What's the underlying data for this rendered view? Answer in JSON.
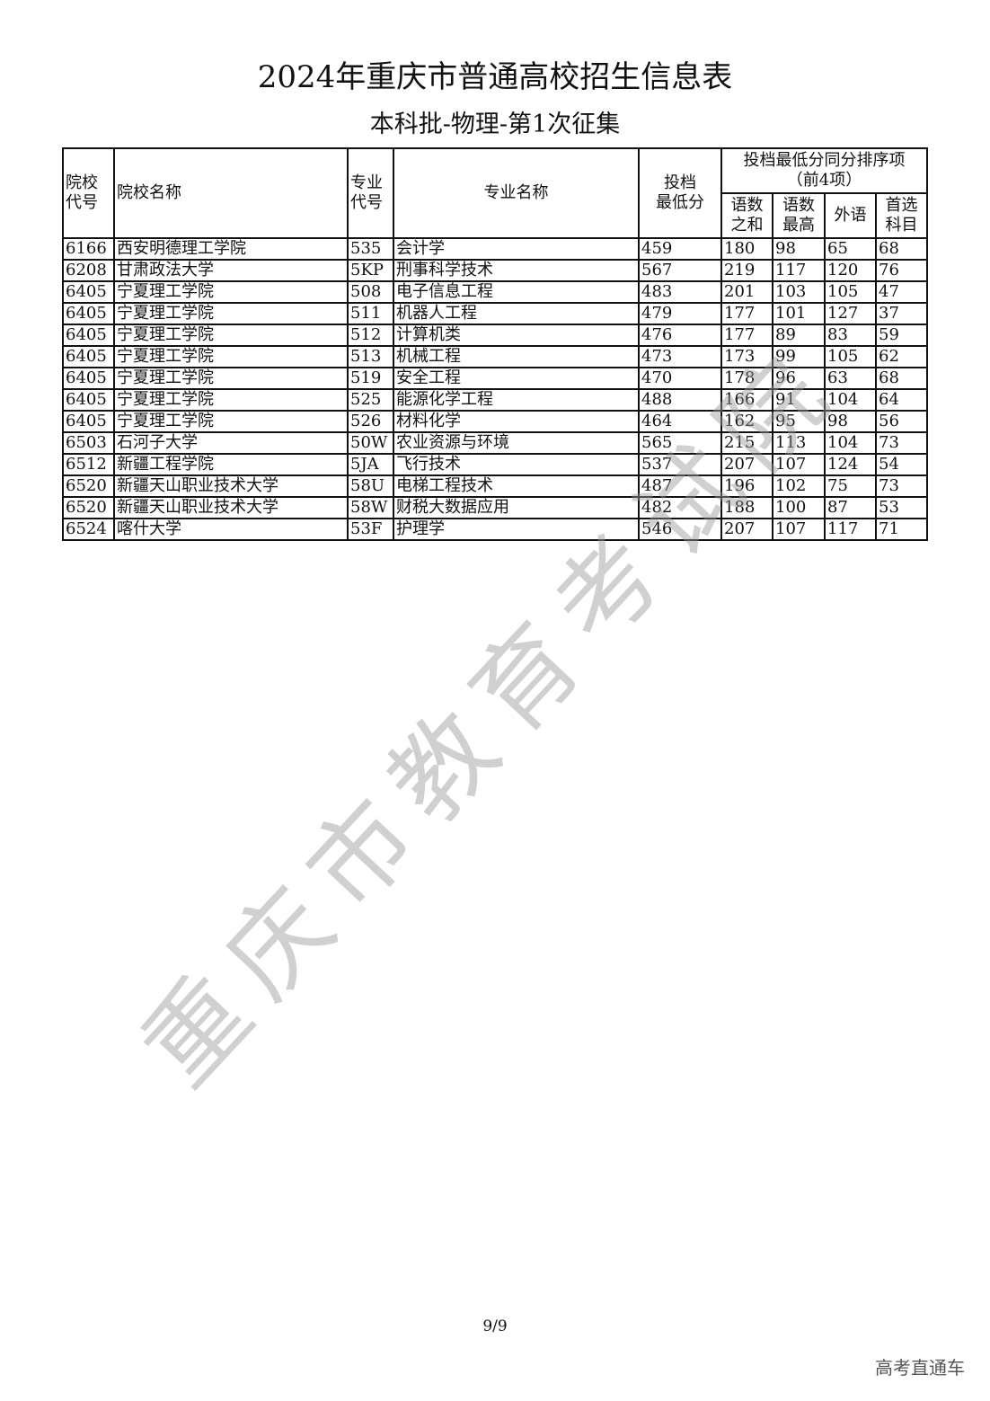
{
  "title": "2024年重庆市普通高校招生信息表",
  "subtitle": "本科批-物理-第1次征集",
  "table": {
    "headers": {
      "school_code": "院校代号",
      "school_code_l1": "院校",
      "school_code_l2": "代号",
      "school_name": "院校名称",
      "major_code_l1": "专业",
      "major_code_l2": "代号",
      "major_name": "专业名称",
      "min_score_l1": "投档",
      "min_score_l2": "最低分",
      "tiebreak_l1": "投档最低分同分排序项",
      "tiebreak_l2": "（前4项）",
      "sub1_l1": "语数",
      "sub1_l2": "之和",
      "sub2_l1": "语数",
      "sub2_l2": "最高",
      "sub3": "外语",
      "sub4_l1": "首选",
      "sub4_l2": "科目"
    },
    "rows": [
      [
        "6166",
        "西安明德理工学院",
        "535",
        "会计学",
        "459",
        "180",
        "98",
        "65",
        "68"
      ],
      [
        "6208",
        "甘肃政法大学",
        "5KP",
        "刑事科学技术",
        "567",
        "219",
        "117",
        "120",
        "76"
      ],
      [
        "6405",
        "宁夏理工学院",
        "508",
        "电子信息工程",
        "483",
        "201",
        "103",
        "105",
        "47"
      ],
      [
        "6405",
        "宁夏理工学院",
        "511",
        "机器人工程",
        "479",
        "177",
        "101",
        "127",
        "37"
      ],
      [
        "6405",
        "宁夏理工学院",
        "512",
        "计算机类",
        "476",
        "177",
        "89",
        "83",
        "59"
      ],
      [
        "6405",
        "宁夏理工学院",
        "513",
        "机械工程",
        "473",
        "173",
        "99",
        "105",
        "62"
      ],
      [
        "6405",
        "宁夏理工学院",
        "519",
        "安全工程",
        "470",
        "178",
        "96",
        "63",
        "68"
      ],
      [
        "6405",
        "宁夏理工学院",
        "525",
        "能源化学工程",
        "488",
        "166",
        "91",
        "104",
        "64"
      ],
      [
        "6405",
        "宁夏理工学院",
        "526",
        "材料化学",
        "464",
        "162",
        "95",
        "98",
        "56"
      ],
      [
        "6503",
        "石河子大学",
        "50W",
        "农业资源与环境",
        "565",
        "215",
        "113",
        "104",
        "73"
      ],
      [
        "6512",
        "新疆工程学院",
        "5JA",
        "飞行技术",
        "537",
        "207",
        "107",
        "124",
        "54"
      ],
      [
        "6520",
        "新疆天山职业技术大学",
        "58U",
        "电梯工程技术",
        "487",
        "196",
        "102",
        "75",
        "73"
      ],
      [
        "6520",
        "新疆天山职业技术大学",
        "58W",
        "财税大数据应用",
        "482",
        "188",
        "100",
        "87",
        "53"
      ],
      [
        "6524",
        "喀什大学",
        "53F",
        "护理学",
        "546",
        "207",
        "107",
        "117",
        "71"
      ]
    ]
  },
  "watermark": "重庆市教育考试院",
  "page_number": "9/9",
  "brand": "高考直通车"
}
